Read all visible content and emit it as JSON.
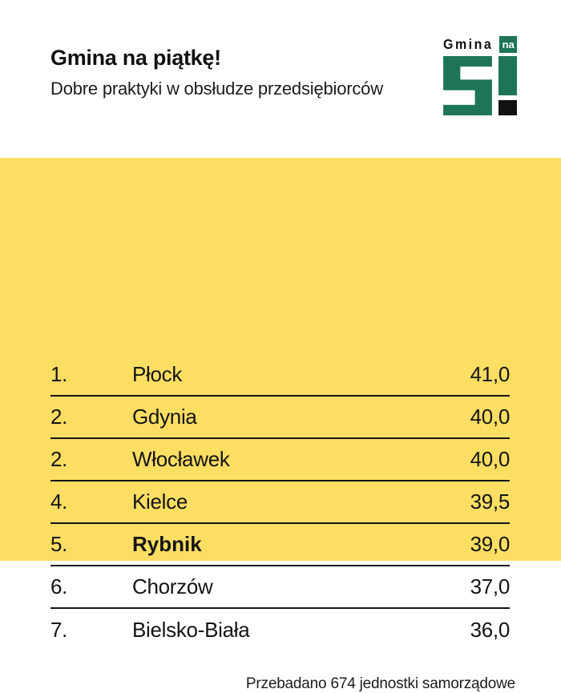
{
  "colors": {
    "green": "#1d7556",
    "yellow": "#fcde63",
    "ink": "#141414"
  },
  "header": {
    "title": "Gmina na piątkę!",
    "subtitle": "Dobre praktyki w obsłudze przedsiębiorców"
  },
  "logo": {
    "word": "Gmina",
    "na": "na",
    "digit": "5",
    "exclamation": "!"
  },
  "chart_data": {
    "type": "table",
    "title": "Gmina na piątkę!",
    "subtitle": "Dobre praktyki w obsłudze przedsiębiorców",
    "rows": [
      {
        "rank": "1.",
        "city": "Płock",
        "score_label": "41,0",
        "value": 41.0,
        "highlight": false
      },
      {
        "rank": "2.",
        "city": "Gdynia",
        "score_label": "40,0",
        "value": 40.0,
        "highlight": false
      },
      {
        "rank": "2.",
        "city": "Włocławek",
        "score_label": "40,0",
        "value": 40.0,
        "highlight": false
      },
      {
        "rank": "4.",
        "city": "Kielce",
        "score_label": "39,5",
        "value": 39.5,
        "highlight": false
      },
      {
        "rank": "5.",
        "city": "Rybnik",
        "score_label": "39,0",
        "value": 39.0,
        "highlight": true
      },
      {
        "rank": "6.",
        "city": "Chorzów",
        "score_label": "37,0",
        "value": 37.0,
        "highlight": false
      },
      {
        "rank": "7.",
        "city": "Bielsko-Biała",
        "score_label": "36,0",
        "value": 36.0,
        "highlight": false
      }
    ],
    "footnote": "Przebadano 674 jednostki samorządowe"
  },
  "footer": {
    "note": "Przebadano 674 jednostki samorządowe"
  }
}
